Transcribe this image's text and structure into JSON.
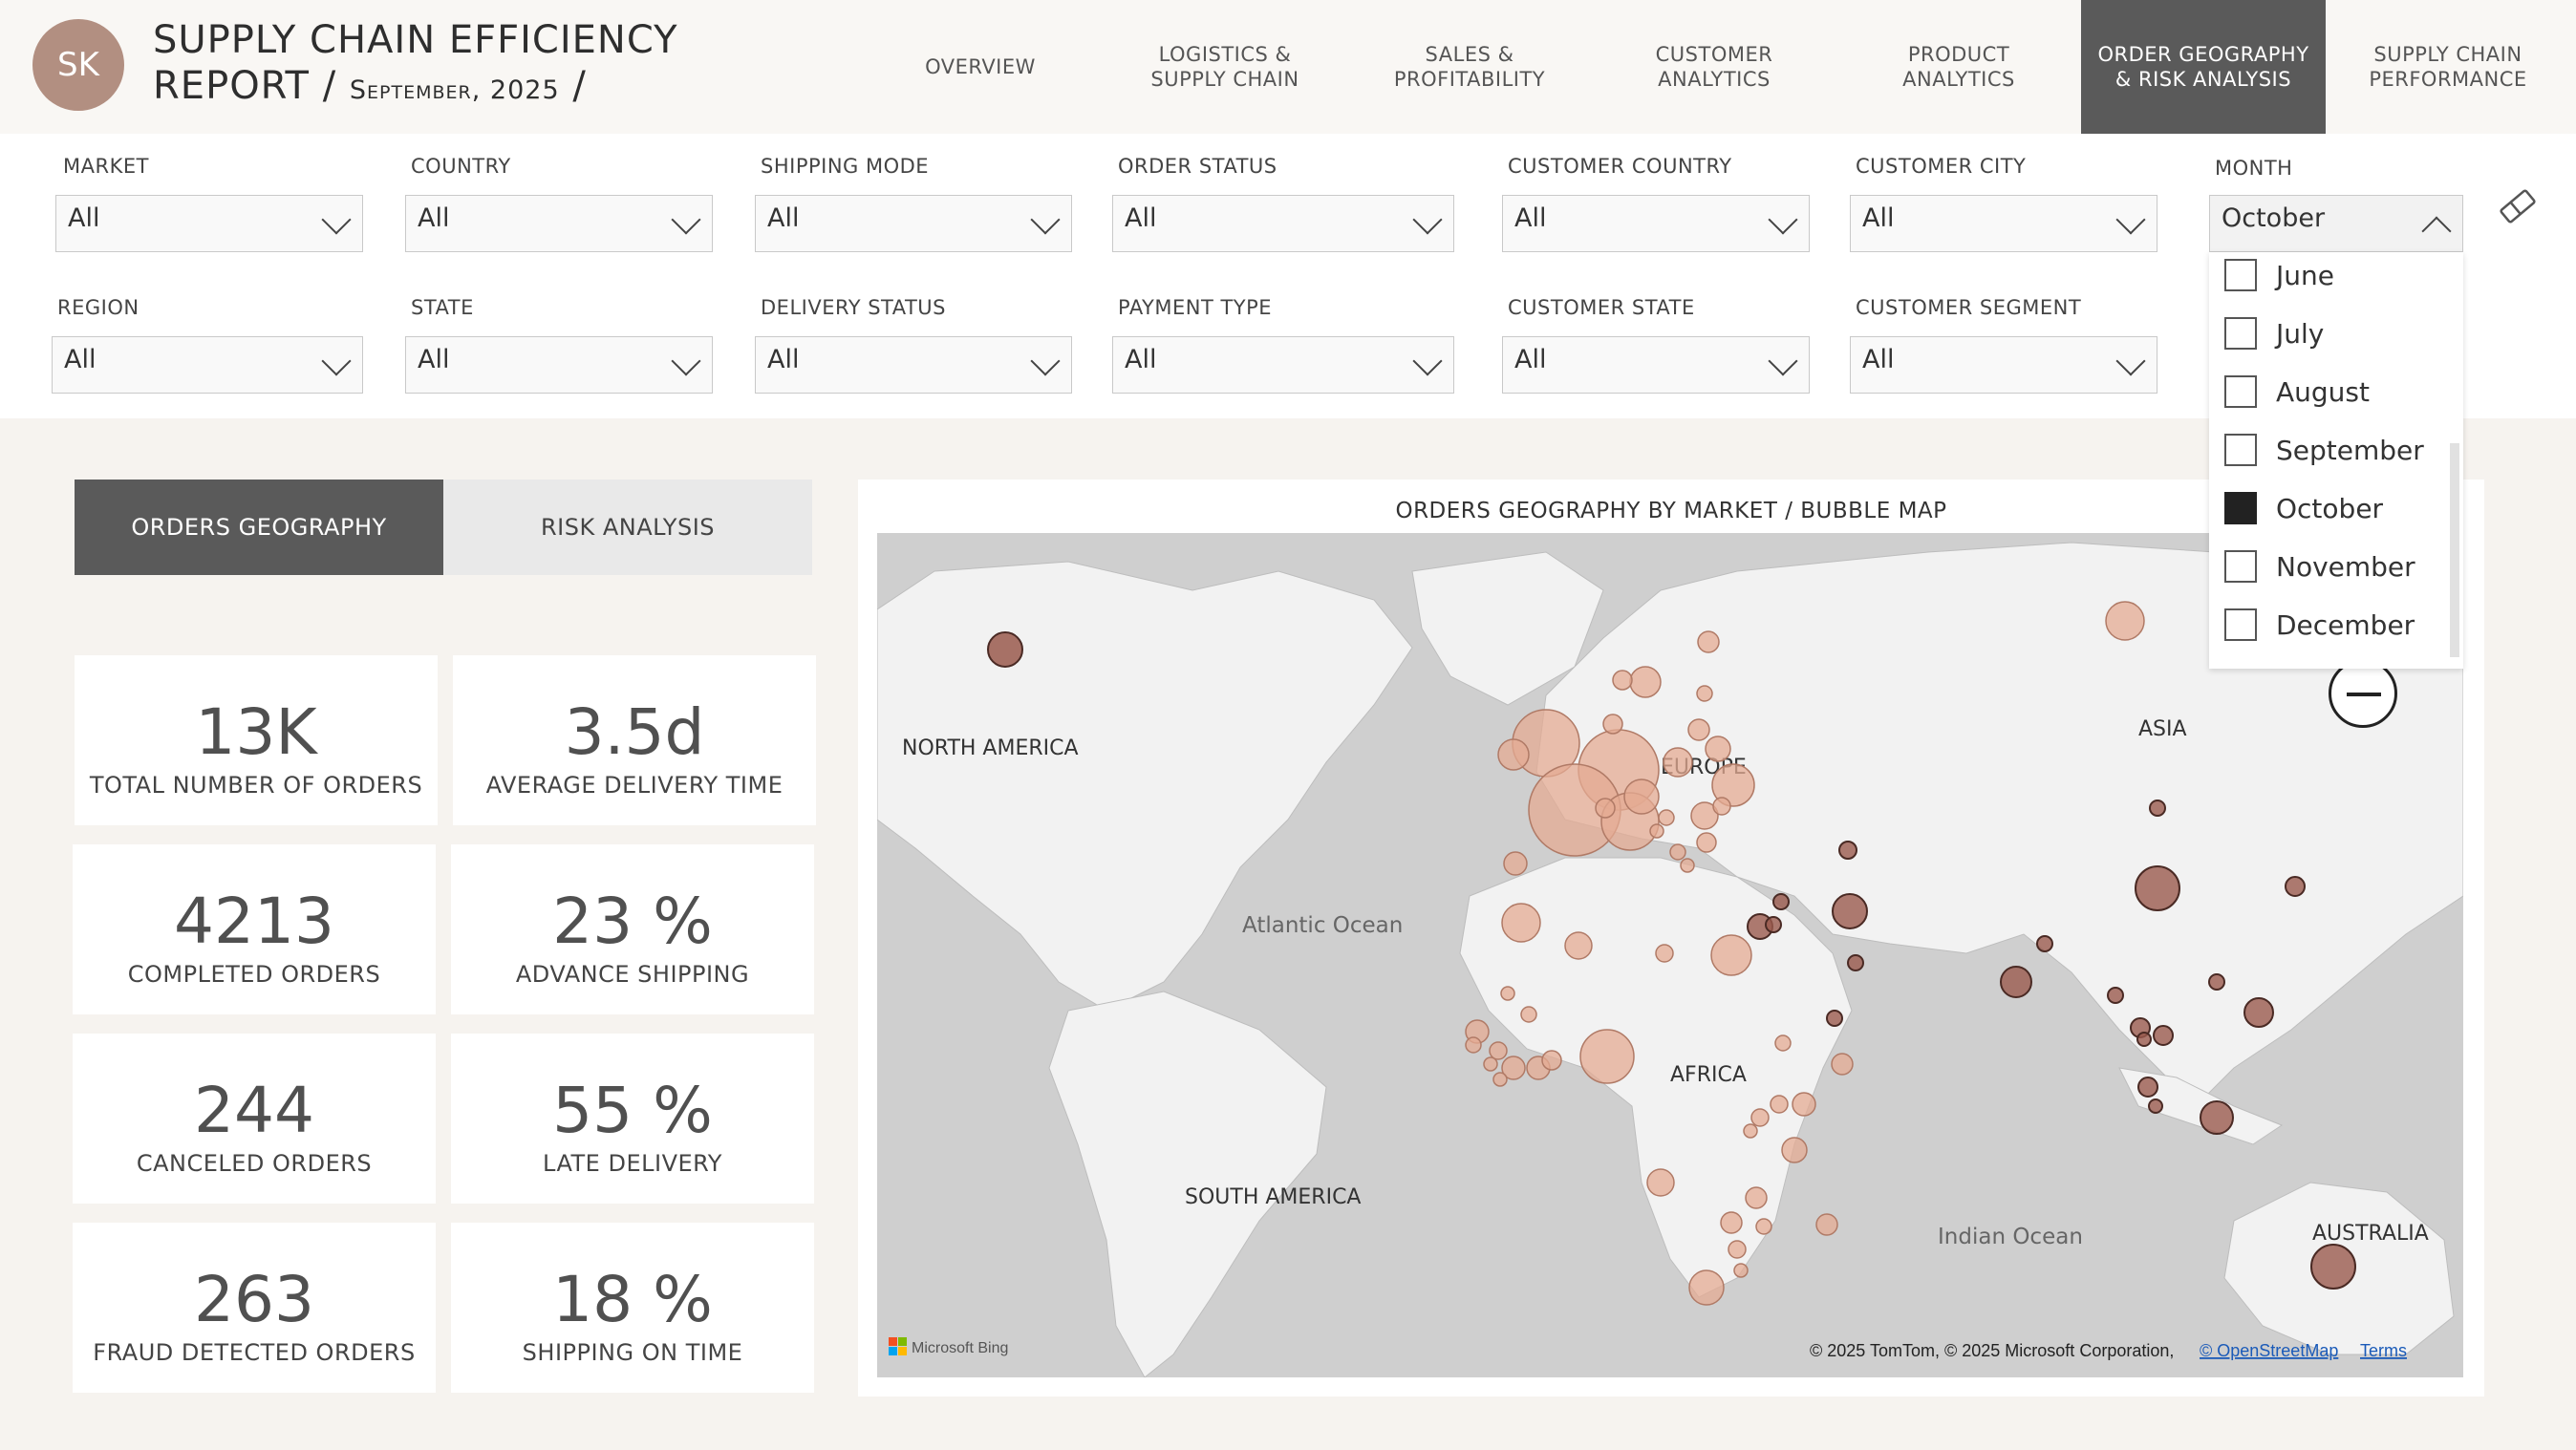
{
  "header": {
    "avatar": "SK",
    "title_line1": "SUPPLY CHAIN EFFICIENCY",
    "title_line2": "REPORT / ",
    "date": "September, 2025",
    "date_slash": " /"
  },
  "nav": [
    {
      "label": "OVERVIEW",
      "active": false
    },
    {
      "label": "LOGISTICS &\nSUPPLY CHAIN",
      "active": false
    },
    {
      "label": "SALES &\nPROFITABILITY",
      "active": false
    },
    {
      "label": "CUSTOMER\nANALYTICS",
      "active": false
    },
    {
      "label": "PRODUCT\nANALYTICS",
      "active": false
    },
    {
      "label": "ORDER GEOGRAPHY\n& RISK ANALYSIS",
      "active": true
    },
    {
      "label": "SUPPLY CHAIN\nPERFORMANCE",
      "active": false
    }
  ],
  "filters": {
    "market": {
      "label": "MARKET",
      "value": "All"
    },
    "country": {
      "label": "COUNTRY",
      "value": "All"
    },
    "shipping_mode": {
      "label": "SHIPPING MODE",
      "value": "All"
    },
    "order_status": {
      "label": "ORDER STATUS",
      "value": "All"
    },
    "customer_country": {
      "label": "CUSTOMER COUNTRY",
      "value": "All"
    },
    "customer_city": {
      "label": "CUSTOMER CITY",
      "value": "All"
    },
    "month": {
      "label": "MONTH",
      "value": "October"
    },
    "region": {
      "label": "REGION",
      "value": "All"
    },
    "state": {
      "label": "STATE",
      "value": "All"
    },
    "delivery_status": {
      "label": "DELIVERY STATUS",
      "value": "All"
    },
    "payment_type": {
      "label": "PAYMENT TYPE",
      "value": "All"
    },
    "customer_state": {
      "label": "CUSTOMER STATE",
      "value": "All"
    },
    "customer_segment": {
      "label": "CUSTOMER SEGMENT",
      "value": "All"
    }
  },
  "month_options": [
    {
      "label": "June",
      "checked": false
    },
    {
      "label": "July",
      "checked": false
    },
    {
      "label": "August",
      "checked": false
    },
    {
      "label": "September",
      "checked": false
    },
    {
      "label": "October",
      "checked": true
    },
    {
      "label": "November",
      "checked": false
    },
    {
      "label": "December",
      "checked": false
    }
  ],
  "tabs": {
    "geography": "ORDERS GEOGRAPHY",
    "risk": "RISK ANALYSIS"
  },
  "kpis": [
    {
      "value": "13K",
      "label": "TOTAL NUMBER OF ORDERS"
    },
    {
      "value": "3.5d",
      "label": "AVERAGE DELIVERY TIME"
    },
    {
      "value": "4213",
      "label": "COMPLETED ORDERS"
    },
    {
      "value": "23 %",
      "label": "ADVANCE SHIPPING"
    },
    {
      "value": "244",
      "label": "CANCELED ORDERS"
    },
    {
      "value": "55 %",
      "label": "LATE DELIVERY"
    },
    {
      "value": "263",
      "label": "FRAUD DETECTED ORDERS"
    },
    {
      "value": "18 %",
      "label": "SHIPPING ON TIME"
    }
  ],
  "map": {
    "title": "ORDERS GEOGRAPHY BY MARKET / BUBBLE MAP",
    "labels": {
      "north_america": "NORTH AMERICA",
      "europe": "EUROPE",
      "asia": "ASIA",
      "africa": "AFRICA",
      "south_america": "SOUTH AMERICA",
      "australia": "AUSTRALIA",
      "atlantic": "Atlantic Ocean",
      "indian": "Indian Ocean"
    },
    "bing": "Microsoft Bing",
    "copyright": "© 2025 TomTom, © 2025 Microsoft Corporation,",
    "osm": "© OpenStreetMap",
    "terms": "Terms",
    "colors": {
      "light_bubble": "#e4ab93",
      "dark_bubble": "#9a5a4e",
      "land": "#f2f2f2",
      "water": "#cfcfcf"
    }
  }
}
